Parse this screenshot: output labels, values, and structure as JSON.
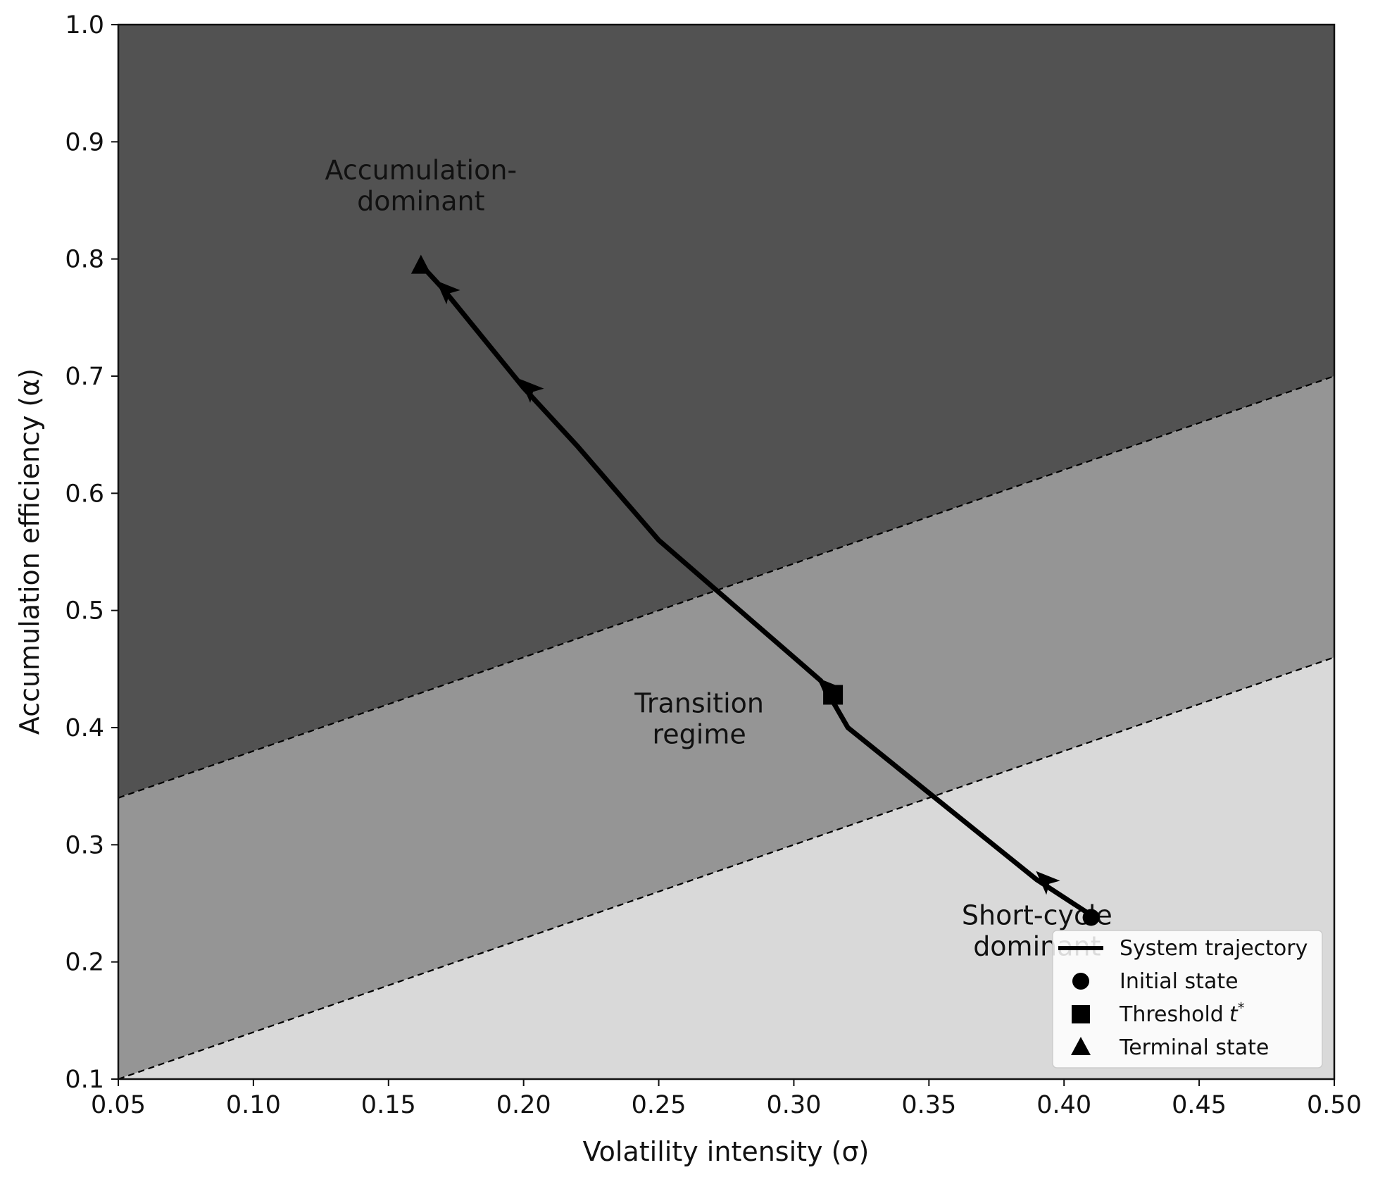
{
  "chart_data": {
    "type": "line",
    "xlabel": "Volatility intensity (σ)",
    "ylabel": "Accumulation efficiency (α)",
    "xlim": [
      0.05,
      0.5
    ],
    "ylim": [
      0.1,
      1.0
    ],
    "xticks": [
      "0.05",
      "0.10",
      "0.15",
      "0.20",
      "0.25",
      "0.30",
      "0.35",
      "0.40",
      "0.45",
      "0.50"
    ],
    "yticks": [
      "0.1",
      "0.2",
      "0.3",
      "0.4",
      "0.5",
      "0.6",
      "0.7",
      "0.8",
      "0.9",
      "1.0"
    ],
    "grid": false,
    "legend_position": "bottom-right",
    "colors": {
      "accumulation_region": "#525252",
      "transition_region": "#959595",
      "short_cycle_region": "#d9d9d9",
      "trajectory": "#000000",
      "boundary": "#000000"
    },
    "boundaries": [
      {
        "name": "upper",
        "x": [
          0.05,
          0.5
        ],
        "y": [
          0.34,
          0.7
        ]
      },
      {
        "name": "lower",
        "x": [
          0.05,
          0.5
        ],
        "y": [
          0.1,
          0.46
        ]
      }
    ],
    "region_labels": [
      {
        "id": "accumulation",
        "lines": [
          "Accumulation-",
          "dominant"
        ],
        "x": 0.162,
        "y": 0.868
      },
      {
        "id": "transition",
        "lines": [
          "Transition",
          "regime"
        ],
        "x": 0.265,
        "y": 0.413
      },
      {
        "id": "short_cycle",
        "lines": [
          "Short-cycle",
          "dominant"
        ],
        "x": 0.39,
        "y": 0.232
      }
    ],
    "series": [
      {
        "name": "System trajectory",
        "x": [
          0.41,
          0.39,
          0.355,
          0.32,
          0.31,
          0.28,
          0.25,
          0.22,
          0.2,
          0.17,
          0.162
        ],
        "y": [
          0.24,
          0.27,
          0.335,
          0.4,
          0.44,
          0.5,
          0.56,
          0.64,
          0.69,
          0.775,
          0.795
        ]
      }
    ],
    "arrows": [
      {
        "x": 0.393,
        "y": 0.27
      },
      {
        "x": 0.312,
        "y": 0.435
      },
      {
        "x": 0.202,
        "y": 0.69
      },
      {
        "x": 0.171,
        "y": 0.774
      }
    ],
    "markers": {
      "initial": {
        "x": 0.41,
        "y": 0.238
      },
      "threshold": {
        "x": 0.3145,
        "y": 0.428
      },
      "terminal": {
        "x": 0.162,
        "y": 0.794
      }
    },
    "legend": [
      {
        "type": "line",
        "label": "System trajectory"
      },
      {
        "type": "circle",
        "label": "Initial state"
      },
      {
        "type": "square",
        "label": "Threshold",
        "sup": "*",
        "italic": "t"
      },
      {
        "type": "triangle",
        "label": "Terminal state"
      }
    ]
  }
}
